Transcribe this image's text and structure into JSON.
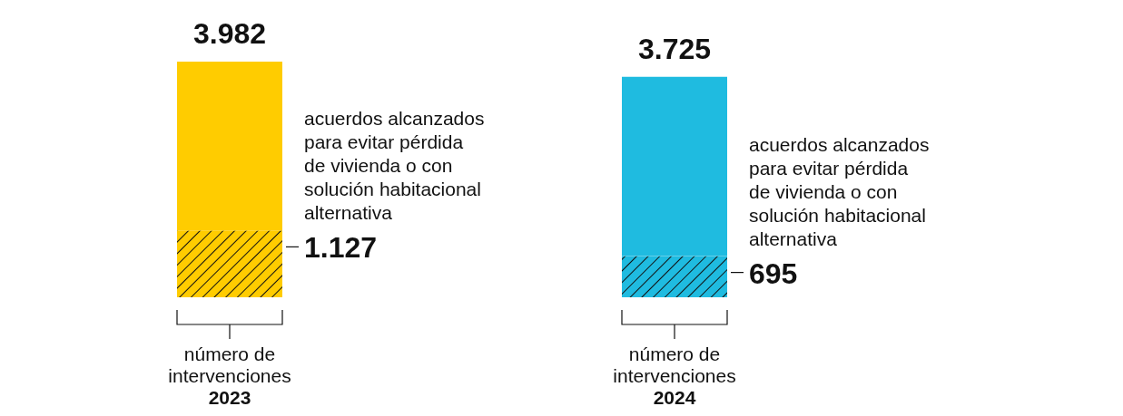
{
  "chart_data": {
    "type": "bar",
    "stacked": true,
    "categories": [
      "número de intervenciones 2023",
      "número de intervenciones 2024"
    ],
    "series": [
      {
        "colors": [
          "#ffcc00",
          "#1fbbe0"
        ],
        "values": [
          1127,
          695
        ],
        "value_labels": [
          "1.127",
          "695"
        ]
      },
      {
        "colors": [
          "#ffcc00",
          "#1fbbe0"
        ],
        "values": [
          2855,
          3030
        ]
      }
    ],
    "totals": [
      "3.982",
      "3.725"
    ],
    "annotations": [
      "acuerdos alcanzados para evitar pérdida de vivienda o con solución habitacional alternativa",
      "acuerdos alcanzados para evitar pérdida de vivienda o con solución habitacional alternativa"
    ]
  }
}
